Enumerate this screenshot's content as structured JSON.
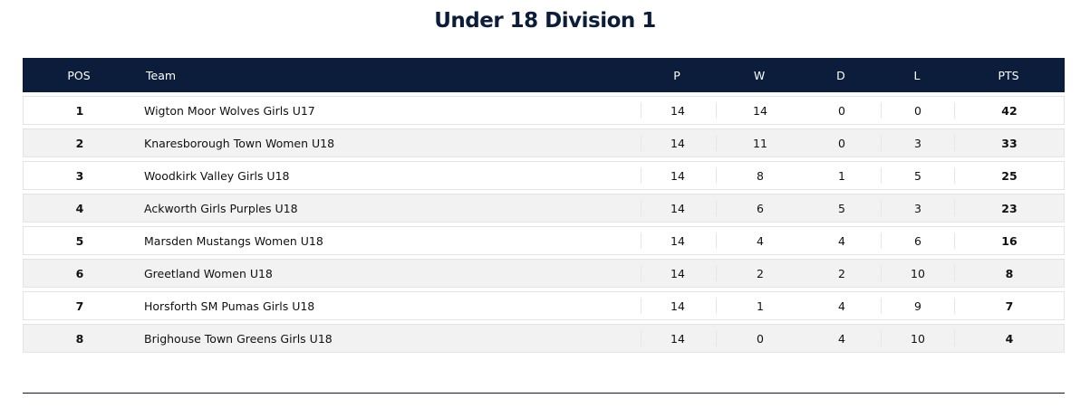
{
  "title": "Under 18 Division 1",
  "table": {
    "headers": [
      "POS",
      "Team",
      "P",
      "W",
      "D",
      "L",
      "PTS"
    ],
    "rows": [
      [
        1,
        "Wigton Moor Wolves Girls U17",
        14,
        14,
        0,
        0,
        42
      ],
      [
        2,
        "Knaresborough Town Women U18",
        14,
        11,
        0,
        3,
        33
      ],
      [
        3,
        "Woodkirk Valley Girls U18",
        14,
        8,
        1,
        5,
        25
      ],
      [
        4,
        "Ackworth Girls Purples U18",
        14,
        6,
        5,
        3,
        23
      ],
      [
        5,
        "Marsden Mustangs Women U18",
        14,
        4,
        4,
        6,
        16
      ],
      [
        6,
        "Greetland Women U18",
        14,
        2,
        2,
        10,
        8
      ],
      [
        7,
        "Horsforth SM Pumas Girls U18",
        14,
        1,
        4,
        9,
        7
      ],
      [
        8,
        "Brighouse Town Greens Girls U18",
        14,
        0,
        4,
        10,
        4
      ]
    ]
  }
}
